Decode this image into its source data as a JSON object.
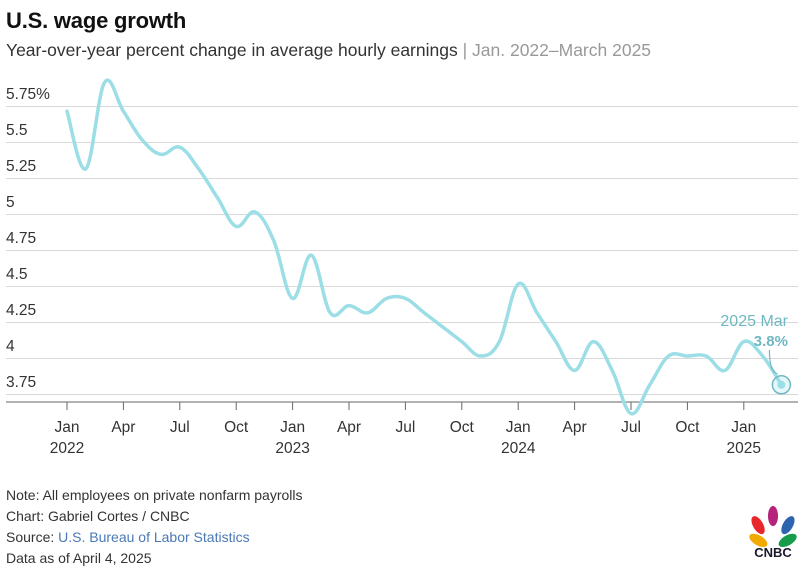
{
  "header": {
    "title": "U.S. wage growth",
    "subtitle_main": "Year-over-year percent change in average hourly earnings",
    "subtitle_sep": "|",
    "subtitle_range": "Jan. 2022–March 2025"
  },
  "chart_data": {
    "type": "line",
    "title": "U.S. wage growth",
    "subtitle": "Year-over-year percent change in average hourly earnings | Jan. 2022–March 2025",
    "xlabel": "",
    "ylabel": "",
    "ylim": [
      3.6,
      5.85
    ],
    "grid": true,
    "line_color": "#9cdee6",
    "y_ticks": [
      {
        "value": 5.75,
        "label": "5.75%"
      },
      {
        "value": 5.5,
        "label": "5.5"
      },
      {
        "value": 5.25,
        "label": "5.25"
      },
      {
        "value": 5.0,
        "label": "5"
      },
      {
        "value": 4.75,
        "label": "4.75"
      },
      {
        "value": 4.5,
        "label": "4.5"
      },
      {
        "value": 4.25,
        "label": "4.25"
      },
      {
        "value": 4.0,
        "label": "4"
      },
      {
        "value": 3.75,
        "label": "3.75"
      }
    ],
    "x_ticks": [
      {
        "index": 0,
        "label": "Jan",
        "year": "2022"
      },
      {
        "index": 3,
        "label": "Apr",
        "year": ""
      },
      {
        "index": 6,
        "label": "Jul",
        "year": ""
      },
      {
        "index": 9,
        "label": "Oct",
        "year": ""
      },
      {
        "index": 12,
        "label": "Jan",
        "year": "2023"
      },
      {
        "index": 15,
        "label": "Apr",
        "year": ""
      },
      {
        "index": 18,
        "label": "Jul",
        "year": ""
      },
      {
        "index": 21,
        "label": "Oct",
        "year": ""
      },
      {
        "index": 24,
        "label": "Jan",
        "year": "2024"
      },
      {
        "index": 27,
        "label": "Apr",
        "year": ""
      },
      {
        "index": 30,
        "label": "Jul",
        "year": ""
      },
      {
        "index": 33,
        "label": "Oct",
        "year": ""
      },
      {
        "index": 36,
        "label": "Jan",
        "year": "2025"
      }
    ],
    "series": [
      {
        "x": [
          "2022-01",
          "2022-02",
          "2022-03",
          "2022-04",
          "2022-05",
          "2022-06",
          "2022-07",
          "2022-08",
          "2022-09",
          "2022-10",
          "2022-11",
          "2022-12",
          "2023-01",
          "2023-02",
          "2023-03",
          "2023-04",
          "2023-05",
          "2023-06",
          "2023-07",
          "2023-08",
          "2023-09",
          "2023-10",
          "2023-11",
          "2023-12",
          "2024-01",
          "2024-02",
          "2024-03",
          "2024-04",
          "2024-05",
          "2024-06",
          "2024-07",
          "2024-08",
          "2024-09",
          "2024-10",
          "2024-11",
          "2024-12",
          "2025-01",
          "2025-02",
          "2025-03"
        ],
        "values": [
          5.7,
          5.3,
          5.9,
          5.7,
          5.5,
          5.4,
          5.45,
          5.3,
          5.1,
          4.9,
          5.0,
          4.8,
          4.4,
          4.7,
          4.3,
          4.35,
          4.3,
          4.4,
          4.4,
          4.3,
          4.2,
          4.1,
          4.0,
          4.1,
          4.5,
          4.3,
          4.1,
          3.9,
          4.1,
          3.9,
          3.6,
          3.8,
          4.0,
          4.0,
          4.0,
          3.9,
          4.1,
          4.0,
          3.8
        ]
      }
    ],
    "annotation": {
      "label": "2025 Mar",
      "value_label": "3.8%",
      "index": 38,
      "value": 3.8
    }
  },
  "footer": {
    "note": "Note: All employees on private nonfarm payrolls",
    "chart_credit": "Chart: Gabriel Cortes / CNBC",
    "source_prefix": "Source: ",
    "source_name": "U.S. Bureau of Labor Statistics",
    "data_as_of": "Data as of April 4, 2025"
  },
  "logo": {
    "text": "CNBC"
  }
}
